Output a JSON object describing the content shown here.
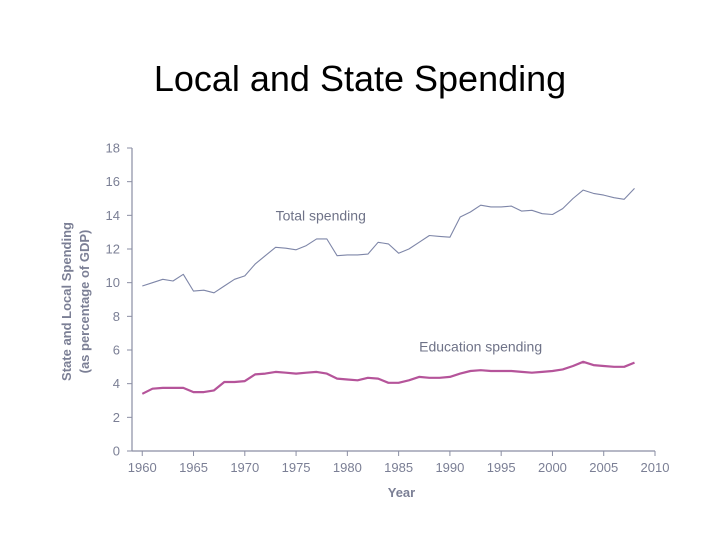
{
  "slide": {
    "title": "Local and State Spending"
  },
  "chart_data": {
    "type": "line",
    "title": "",
    "xlabel": "Year",
    "ylabel": [
      "State and Local Spending",
      "(as percentage of GDP)"
    ],
    "xlim": [
      1959,
      2010
    ],
    "ylim": [
      0,
      18
    ],
    "xticks": [
      "1960",
      "1965",
      "1970",
      "1975",
      "1980",
      "1985",
      "1990",
      "1995",
      "2000",
      "2005",
      "2010"
    ],
    "yticks": [
      "0",
      "2",
      "4",
      "6",
      "8",
      "10",
      "12",
      "14",
      "16",
      "18"
    ],
    "grid": false,
    "colors": {
      "axis": "#8a8ea3",
      "text": "#7b7f95",
      "total": "#7e86a8",
      "education": "#b5549a"
    },
    "series": [
      {
        "name": "Total spending",
        "label_at": [
          1973,
          13.7
        ],
        "points": [
          [
            1960,
            9.8
          ],
          [
            1961,
            10.0
          ],
          [
            1962,
            10.2
          ],
          [
            1963,
            10.1
          ],
          [
            1964,
            10.5
          ],
          [
            1965,
            9.5
          ],
          [
            1966,
            9.55
          ],
          [
            1967,
            9.4
          ],
          [
            1968,
            9.8
          ],
          [
            1969,
            10.2
          ],
          [
            1970,
            10.4
          ],
          [
            1971,
            11.1
          ],
          [
            1972,
            11.6
          ],
          [
            1973,
            12.1
          ],
          [
            1974,
            12.05
          ],
          [
            1975,
            11.95
          ],
          [
            1976,
            12.2
          ],
          [
            1977,
            12.6
          ],
          [
            1978,
            12.6
          ],
          [
            1979,
            11.6
          ],
          [
            1980,
            11.65
          ],
          [
            1981,
            11.65
          ],
          [
            1982,
            11.7
          ],
          [
            1983,
            12.4
          ],
          [
            1984,
            12.3
          ],
          [
            1985,
            11.75
          ],
          [
            1986,
            12.0
          ],
          [
            1987,
            12.4
          ],
          [
            1988,
            12.8
          ],
          [
            1989,
            12.75
          ],
          [
            1990,
            12.7
          ],
          [
            1991,
            13.9
          ],
          [
            1992,
            14.2
          ],
          [
            1993,
            14.6
          ],
          [
            1994,
            14.5
          ],
          [
            1995,
            14.5
          ],
          [
            1996,
            14.55
          ],
          [
            1997,
            14.25
          ],
          [
            1998,
            14.3
          ],
          [
            1999,
            14.1
          ],
          [
            2000,
            14.05
          ],
          [
            2001,
            14.4
          ],
          [
            2002,
            15.0
          ],
          [
            2003,
            15.5
          ],
          [
            2004,
            15.3
          ],
          [
            2005,
            15.2
          ],
          [
            2006,
            15.05
          ],
          [
            2007,
            14.95
          ],
          [
            2008,
            15.6
          ]
        ]
      },
      {
        "name": "Education spending",
        "label_at": [
          1987,
          5.9
        ],
        "points": [
          [
            1960,
            3.4
          ],
          [
            1961,
            3.7
          ],
          [
            1962,
            3.75
          ],
          [
            1963,
            3.75
          ],
          [
            1964,
            3.75
          ],
          [
            1965,
            3.5
          ],
          [
            1966,
            3.5
          ],
          [
            1967,
            3.6
          ],
          [
            1968,
            4.1
          ],
          [
            1969,
            4.1
          ],
          [
            1970,
            4.15
          ],
          [
            1971,
            4.55
          ],
          [
            1972,
            4.6
          ],
          [
            1973,
            4.7
          ],
          [
            1974,
            4.65
          ],
          [
            1975,
            4.6
          ],
          [
            1976,
            4.65
          ],
          [
            1977,
            4.7
          ],
          [
            1978,
            4.6
          ],
          [
            1979,
            4.3
          ],
          [
            1980,
            4.25
          ],
          [
            1981,
            4.2
          ],
          [
            1982,
            4.35
          ],
          [
            1983,
            4.3
          ],
          [
            1984,
            4.05
          ],
          [
            1985,
            4.05
          ],
          [
            1986,
            4.2
          ],
          [
            1987,
            4.4
          ],
          [
            1988,
            4.35
          ],
          [
            1989,
            4.35
          ],
          [
            1990,
            4.4
          ],
          [
            1991,
            4.6
          ],
          [
            1992,
            4.75
          ],
          [
            1993,
            4.8
          ],
          [
            1994,
            4.75
          ],
          [
            1995,
            4.75
          ],
          [
            1996,
            4.75
          ],
          [
            1997,
            4.7
          ],
          [
            1998,
            4.65
          ],
          [
            1999,
            4.7
          ],
          [
            2000,
            4.75
          ],
          [
            2001,
            4.85
          ],
          [
            2002,
            5.05
          ],
          [
            2003,
            5.3
          ],
          [
            2004,
            5.1
          ],
          [
            2005,
            5.05
          ],
          [
            2006,
            5.0
          ],
          [
            2007,
            5.0
          ],
          [
            2008,
            5.25
          ]
        ]
      }
    ]
  }
}
